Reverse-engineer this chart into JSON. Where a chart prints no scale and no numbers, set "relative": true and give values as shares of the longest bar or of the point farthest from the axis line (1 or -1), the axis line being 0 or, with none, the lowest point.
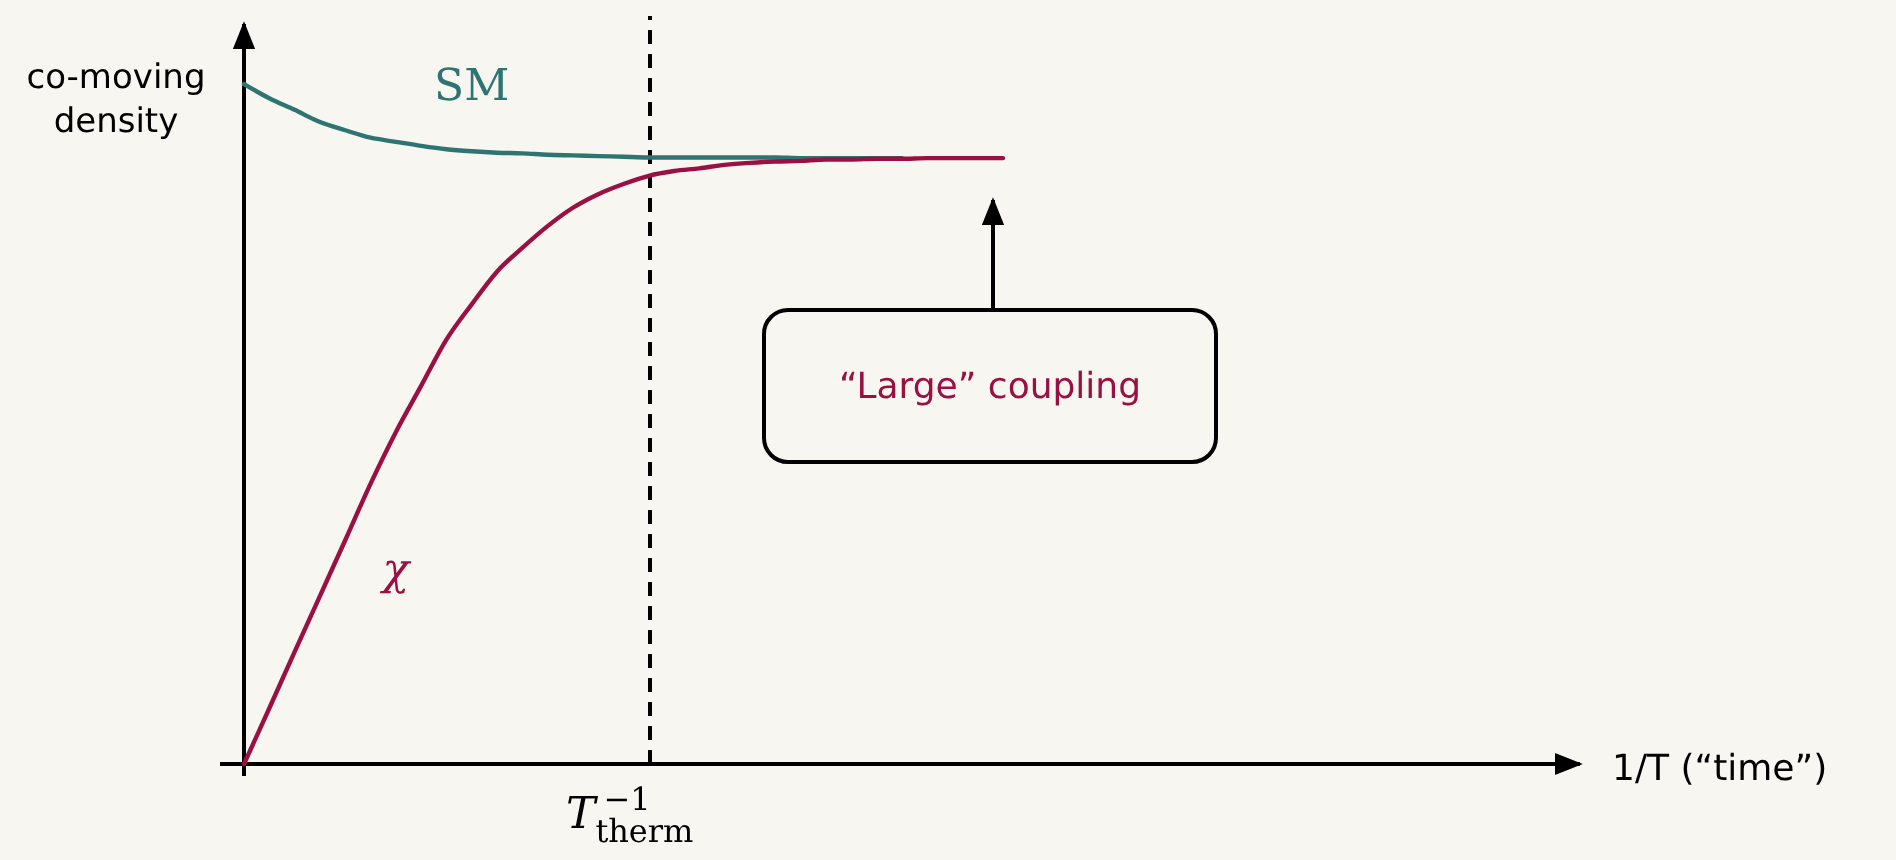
{
  "chart_data": {
    "type": "line",
    "relative": true,
    "ylabel": "co-moving density",
    "xlabel": "1/T (“time”)",
    "categories": [
      null,
      null,
      null,
      null,
      null,
      null,
      null,
      null,
      null,
      null,
      null,
      null,
      null,
      null,
      null,
      null,
      null,
      null,
      null,
      null,
      null,
      null,
      null,
      null,
      null,
      null,
      null,
      null,
      null,
      null,
      null,
      null,
      null,
      null,
      null,
      null,
      null,
      null,
      null,
      null,
      null,
      null,
      null,
      null,
      null,
      null,
      null,
      null,
      null,
      null,
      null,
      null,
      null
    ],
    "series": [
      {
        "name": "SM",
        "color": "#2e7572",
        "values": [
          1,
          0.979,
          0.962,
          0.944,
          0.932,
          0.921,
          0.915,
          0.909,
          0.904,
          0.901,
          0.899,
          0.898,
          0.896,
          0.895,
          0.894,
          0.893,
          0.892,
          0.892,
          0.892,
          0.892,
          0.892,
          0.892,
          0.891,
          0.891,
          0.891,
          0.891,
          0.891,
          null,
          null,
          null,
          null,
          null,
          null,
          null,
          null,
          null,
          null,
          null,
          null,
          null,
          null,
          null,
          null,
          null,
          null,
          null,
          null,
          null,
          null,
          null,
          null,
          null,
          null
        ]
      },
      {
        "name": "χ",
        "color": "#9b1042",
        "values": [
          0,
          0.082,
          0.165,
          0.247,
          0.329,
          0.412,
          0.488,
          0.556,
          0.624,
          0.676,
          0.724,
          0.759,
          0.791,
          0.818,
          0.838,
          0.853,
          0.865,
          0.872,
          0.876,
          0.881,
          0.884,
          0.886,
          0.887,
          0.889,
          0.889,
          0.89,
          0.89,
          0.891,
          0.891,
          0.891,
          0.891,
          null,
          null,
          null,
          null,
          null,
          null,
          null,
          null,
          null,
          null,
          null,
          null,
          null,
          null,
          null,
          null,
          null,
          null,
          null,
          null,
          null,
          null
        ]
      }
    ],
    "annotations": [
      "“Large” coupling",
      "T$_{therm}$$^{−1}$"
    ],
    "marker": "none",
    "line_style": "solid"
  }
}
